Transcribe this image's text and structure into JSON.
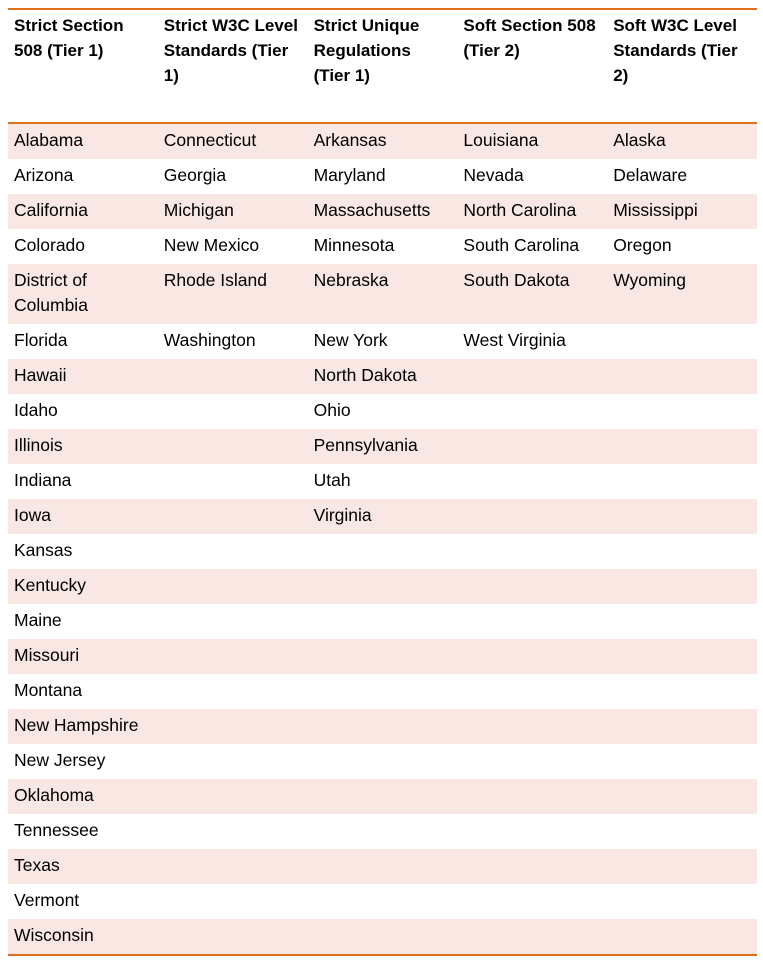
{
  "headers": [
    "Strict Section 508 (Tier 1)",
    "Strict W3C Level Standards (Tier 1)",
    "Strict Unique Regulations (Tier 1)",
    "Soft Section 508 (Tier 2)",
    "Soft W3C Level Standards  (Tier 2)"
  ],
  "columns": [
    [
      "Alabama",
      "Arizona",
      "California",
      "Colorado",
      "District of Columbia",
      "Florida",
      "Hawaii",
      "Idaho",
      "Illinois",
      "Indiana",
      "Iowa",
      "Kansas",
      "Kentucky",
      "Maine",
      "Missouri",
      "Montana",
      "New Hampshire",
      "New Jersey",
      "Oklahoma",
      "Tennessee",
      "Texas",
      "Vermont",
      "Wisconsin"
    ],
    [
      "Connecticut",
      "Georgia",
      "Michigan",
      "New Mexico",
      "Rhode Island",
      "Washington"
    ],
    [
      "Arkansas",
      "Maryland",
      "Massachusetts",
      "Minnesota",
      "Nebraska",
      "New York",
      "North Dakota",
      "Ohio",
      "Pennsylvania",
      "Utah",
      "Virginia"
    ],
    [
      "Louisiana",
      "Nevada",
      "North Carolina",
      "South Carolina",
      "South Dakota",
      "West Virginia"
    ],
    [
      "Alaska",
      "Delaware",
      "Mississippi",
      "Oregon",
      " Wyoming"
    ]
  ],
  "colors": {
    "rule": "#e0701e",
    "band": "#f8e7e3"
  }
}
